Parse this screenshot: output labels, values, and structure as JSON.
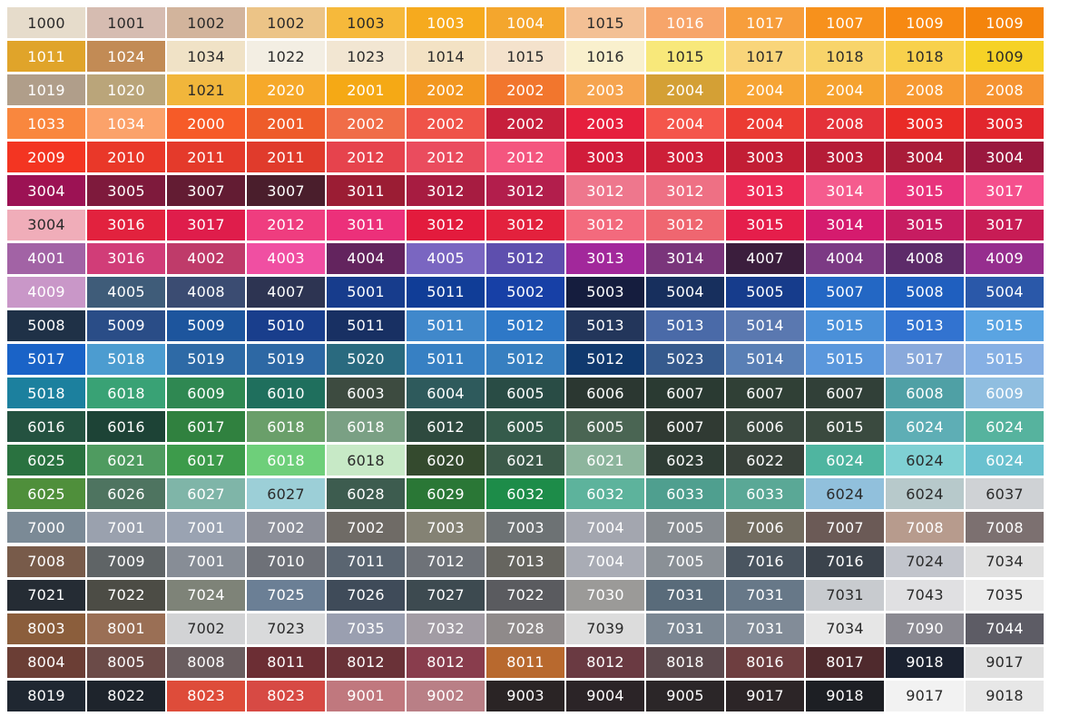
{
  "palette": {
    "rows": [
      [
        [
          "1000",
          "#e6dccb"
        ],
        [
          "1001",
          "#d6bcb1"
        ],
        [
          "1002",
          "#d2b49c"
        ],
        [
          "1002",
          "#ecc487"
        ],
        [
          "1003",
          "#f6b93b"
        ],
        [
          "1003",
          "#f6aa1e"
        ],
        [
          "1004",
          "#f4a62d"
        ],
        [
          "1015",
          "#f3c095"
        ],
        [
          "1016",
          "#f7a56a"
        ],
        [
          "1017",
          "#f79e3c"
        ],
        [
          "1007",
          "#f7911c"
        ],
        [
          "1009",
          "#f78912"
        ],
        [
          "1009",
          "#f4840c"
        ]
      ],
      [
        [
          "1011",
          "#e0a42a"
        ],
        [
          "1024",
          "#c28b55"
        ],
        [
          "1034",
          "#f0e2c6"
        ],
        [
          "1022",
          "#f3eee3"
        ],
        [
          "1023",
          "#f2e6d2"
        ],
        [
          "1014",
          "#f3e2c4"
        ],
        [
          "1015",
          "#f4e2cc"
        ],
        [
          "1016",
          "#f9f0cd"
        ],
        [
          "1015",
          "#f8e87a"
        ],
        [
          "1017",
          "#f9d57a"
        ],
        [
          "1018",
          "#f8d46a"
        ],
        [
          "1018",
          "#f8d14c"
        ],
        [
          "1009",
          "#f6d226"
        ]
      ],
      [
        [
          "1019",
          "#b09e8a"
        ],
        [
          "1020",
          "#baa57a"
        ],
        [
          "1021",
          "#f1b63b"
        ],
        [
          "2020",
          "#f6a92a"
        ],
        [
          "2001",
          "#f5a915"
        ],
        [
          "2002",
          "#f39821"
        ],
        [
          "2002",
          "#f2762d"
        ],
        [
          "2003",
          "#f6a550"
        ],
        [
          "2004",
          "#d4a035"
        ],
        [
          "2004",
          "#f7a535"
        ],
        [
          "2004",
          "#f6a330"
        ],
        [
          "2008",
          "#f79a33"
        ],
        [
          "2008",
          "#f69432"
        ]
      ],
      [
        [
          "1033",
          "#f9873e"
        ],
        [
          "1034",
          "#fba26a"
        ],
        [
          "2000",
          "#f65b28"
        ],
        [
          "2001",
          "#ee5c2a"
        ],
        [
          "2002",
          "#f06d48"
        ],
        [
          "2002",
          "#ef5349"
        ],
        [
          "2002",
          "#c71f3c"
        ],
        [
          "2003",
          "#e61f3d"
        ],
        [
          "2004",
          "#f4564b"
        ],
        [
          "2004",
          "#eb3b33"
        ],
        [
          "2008",
          "#e43139"
        ],
        [
          "3003",
          "#e92b27"
        ],
        [
          "3003",
          "#e2262d"
        ]
      ],
      [
        [
          "2009",
          "#f33522"
        ],
        [
          "2010",
          "#e93829"
        ],
        [
          "2011",
          "#e43a2b"
        ],
        [
          "2011",
          "#e03b2c"
        ],
        [
          "2012",
          "#e6434d"
        ],
        [
          "2012",
          "#ea4c5e"
        ],
        [
          "2012",
          "#f4567f"
        ],
        [
          "3003",
          "#d11c3a"
        ],
        [
          "3003",
          "#cd1f38"
        ],
        [
          "3003",
          "#c21e35"
        ],
        [
          "3003",
          "#b51c37"
        ],
        [
          "3004",
          "#a91c39"
        ],
        [
          "3004",
          "#9a183e"
        ]
      ],
      [
        [
          "3004",
          "#9c1254"
        ],
        [
          "3005",
          "#7e1a3c"
        ],
        [
          "3007",
          "#631c33"
        ],
        [
          "3007",
          "#4a1e2c"
        ],
        [
          "3011",
          "#9b1d34"
        ],
        [
          "3012",
          "#a71c41"
        ],
        [
          "3012",
          "#b21e4c"
        ],
        [
          "3012",
          "#ee778d"
        ],
        [
          "3012",
          "#ee7084"
        ],
        [
          "3013",
          "#ec2a56"
        ],
        [
          "3014",
          "#f55c8e"
        ],
        [
          "3015",
          "#e8337c"
        ],
        [
          "3017",
          "#f5508d"
        ]
      ],
      [
        [
          "3004",
          "#f0adb9"
        ],
        [
          "3016",
          "#e2223e"
        ],
        [
          "3017",
          "#df1d4b"
        ],
        [
          "2012",
          "#ef3d7f"
        ],
        [
          "3011",
          "#ec307a"
        ],
        [
          "3012",
          "#e31b3d"
        ],
        [
          "3012",
          "#e3213d"
        ],
        [
          "3012",
          "#f36a7d"
        ],
        [
          "3012",
          "#ef6670"
        ],
        [
          "3015",
          "#e51e4b"
        ],
        [
          "3014",
          "#d51b6e"
        ],
        [
          "3015",
          "#c71c61"
        ],
        [
          "3017",
          "#c81c55"
        ]
      ],
      [
        [
          "4001",
          "#a263a5"
        ],
        [
          "3016",
          "#d13d78"
        ],
        [
          "4002",
          "#bf3b6a"
        ],
        [
          "4003",
          "#f04fa2"
        ],
        [
          "4004",
          "#63245e"
        ],
        [
          "4005",
          "#7a66c1"
        ],
        [
          "5012",
          "#5e4fae"
        ],
        [
          "3013",
          "#a2289b"
        ],
        [
          "3014",
          "#7a357b"
        ],
        [
          "4007",
          "#3b1e3d"
        ],
        [
          "4004",
          "#7c3a84"
        ],
        [
          "4008",
          "#5d2b69"
        ],
        [
          "4009",
          "#962e8e"
        ]
      ],
      [
        [
          "4009",
          "#c997c8"
        ],
        [
          "4005",
          "#3f5c79"
        ],
        [
          "4008",
          "#3b4c72"
        ],
        [
          "4007",
          "#2d3452"
        ],
        [
          "5001",
          "#173c8c"
        ],
        [
          "5011",
          "#103d97"
        ],
        [
          "5002",
          "#1740a6"
        ],
        [
          "5003",
          "#151d3e"
        ],
        [
          "5004",
          "#172f5d"
        ],
        [
          "5005",
          "#163c8c"
        ],
        [
          "5007",
          "#2367c4"
        ],
        [
          "5008",
          "#1f5fbf"
        ],
        [
          "5004",
          "#2a58a9"
        ]
      ],
      [
        [
          "5008",
          "#1f3147"
        ],
        [
          "5009",
          "#2a4d87"
        ],
        [
          "5009",
          "#1d559d"
        ],
        [
          "5010",
          "#193e8c"
        ],
        [
          "5011",
          "#183063"
        ],
        [
          "5011",
          "#4088cb"
        ],
        [
          "5012",
          "#2e78c7"
        ],
        [
          "5013",
          "#23365b"
        ],
        [
          "5013",
          "#4a6aa8"
        ],
        [
          "5014",
          "#5a78b0"
        ],
        [
          "5015",
          "#4a90d9"
        ],
        [
          "5013",
          "#3273d0"
        ],
        [
          "5015",
          "#5aa4e2"
        ]
      ],
      [
        [
          "5017",
          "#1a63c7"
        ],
        [
          "5018",
          "#4c9cd0"
        ],
        [
          "5019",
          "#2e6aa6"
        ],
        [
          "5019",
          "#2d68a4"
        ],
        [
          "5020",
          "#2a6a7f"
        ],
        [
          "5011",
          "#3780c3"
        ],
        [
          "5012",
          "#377fc0"
        ],
        [
          "5012",
          "#10396e"
        ],
        [
          "5023",
          "#365a8d"
        ],
        [
          "5014",
          "#597fb5"
        ],
        [
          "5015",
          "#5a97dc"
        ],
        [
          "5017",
          "#89a9db"
        ],
        [
          "5015",
          "#86b0e4"
        ]
      ],
      [
        [
          "5018",
          "#1c809e"
        ],
        [
          "6018",
          "#39a275"
        ],
        [
          "6009",
          "#2f8852"
        ],
        [
          "6010",
          "#1f6f5d"
        ],
        [
          "6003",
          "#3d4b40"
        ],
        [
          "6004",
          "#2e5a5c"
        ],
        [
          "6005",
          "#294c45"
        ],
        [
          "6006",
          "#2b3731"
        ],
        [
          "6007",
          "#2a3a32"
        ],
        [
          "6007",
          "#304036"
        ],
        [
          "6007",
          "#314038"
        ],
        [
          "6008",
          "#4fa0a5"
        ],
        [
          "6009",
          "#90bee0"
        ]
      ],
      [
        [
          "6016",
          "#245240"
        ],
        [
          "6016",
          "#1d4336"
        ],
        [
          "6017",
          "#30813f"
        ],
        [
          "6018",
          "#6a9f6a"
        ],
        [
          "6018",
          "#7aa084"
        ],
        [
          "6012",
          "#2e4a3f"
        ],
        [
          "6005",
          "#355b4b"
        ],
        [
          "6005",
          "#4a6553"
        ],
        [
          "6007",
          "#303a33"
        ],
        [
          "6006",
          "#3b4940"
        ],
        [
          "6015",
          "#3a4a3f"
        ],
        [
          "6024",
          "#5eaeb5"
        ],
        [
          "6024",
          "#56b39e"
        ]
      ],
      [
        [
          "6025",
          "#2a7240"
        ],
        [
          "6021",
          "#4f9b60"
        ],
        [
          "6017",
          "#3d9b4b"
        ],
        [
          "6018",
          "#6ecf7a"
        ],
        [
          "6018",
          "#c7e9c6"
        ],
        [
          "6020",
          "#344a2e"
        ],
        [
          "6021",
          "#3c5a4a"
        ],
        [
          "6021",
          "#8db59d"
        ],
        [
          "6023",
          "#2f3d35"
        ],
        [
          "6022",
          "#38413a"
        ],
        [
          "6024",
          "#4fb5a0"
        ],
        [
          "6024",
          "#7fd0d3"
        ],
        [
          "6024",
          "#6ac1cf"
        ]
      ],
      [
        [
          "6025",
          "#4f8f3b"
        ],
        [
          "6026",
          "#4e7460"
        ],
        [
          "6027",
          "#7fb5a8"
        ],
        [
          "6027",
          "#9ccfd7"
        ],
        [
          "6028",
          "#3d5c4f"
        ],
        [
          "6029",
          "#2a7736"
        ],
        [
          "6032",
          "#1d8c49"
        ],
        [
          "6032",
          "#5db39c"
        ],
        [
          "6033",
          "#4f9f8f"
        ],
        [
          "6033",
          "#5aa896"
        ],
        [
          "6024",
          "#91c0dc"
        ],
        [
          "6024",
          "#b7c9cb"
        ],
        [
          "6037",
          "#cfd2d5"
        ]
      ],
      [
        [
          "7000",
          "#7b8a96"
        ],
        [
          "7001",
          "#9aa1ae"
        ],
        [
          "7001",
          "#9aa3b2"
        ],
        [
          "7002",
          "#8c8f99"
        ],
        [
          "7002",
          "#6f6b66"
        ],
        [
          "7003",
          "#848274"
        ],
        [
          "7003",
          "#6d7274"
        ],
        [
          "7004",
          "#a3a6af"
        ],
        [
          "7005",
          "#868b90"
        ],
        [
          "7006",
          "#726c60"
        ],
        [
          "7007",
          "#6b5a56"
        ],
        [
          "7008",
          "#b79b8d"
        ],
        [
          "7008",
          "#7c7070"
        ]
      ],
      [
        [
          "7008",
          "#785b4a"
        ],
        [
          "7009",
          "#5f6466"
        ],
        [
          "7001",
          "#878d96"
        ],
        [
          "7010",
          "#6e7178"
        ],
        [
          "7011",
          "#5a6571"
        ],
        [
          "7012",
          "#6e7278"
        ],
        [
          "7013",
          "#66655f"
        ],
        [
          "7004",
          "#a9acb5"
        ],
        [
          "7005",
          "#8a9096"
        ],
        [
          "7016",
          "#4a5560"
        ],
        [
          "7016",
          "#3b434c"
        ],
        [
          "7024",
          "#c2c5cc"
        ],
        [
          "7034",
          "#e0e0e0"
        ]
      ],
      [
        [
          "7021",
          "#252c34"
        ],
        [
          "7022",
          "#4c4c45"
        ],
        [
          "7024",
          "#7e8378"
        ],
        [
          "7025",
          "#6b7f95"
        ],
        [
          "7026",
          "#3f4b59"
        ],
        [
          "7027",
          "#3d4a50"
        ],
        [
          "7022",
          "#5a5b5f"
        ],
        [
          "7030",
          "#9b9a98"
        ],
        [
          "7031",
          "#596b7a"
        ],
        [
          "7031",
          "#677888"
        ],
        [
          "7031",
          "#c8cbcf"
        ],
        [
          "7043",
          "#e0e0e2"
        ],
        [
          "7035",
          "#ebebeb"
        ]
      ],
      [
        [
          "8003",
          "#8b5e3c"
        ],
        [
          "8001",
          "#9a6f55"
        ],
        [
          "7002",
          "#d2d3d5"
        ],
        [
          "7023",
          "#d9dadb"
        ],
        [
          "7035",
          "#9a9fb0"
        ],
        [
          "7032",
          "#a29ca4"
        ],
        [
          "7028",
          "#8f8a8a"
        ],
        [
          "7039",
          "#dcdcdc"
        ],
        [
          "7031",
          "#7c8894"
        ],
        [
          "7031",
          "#828c98"
        ],
        [
          "7034",
          "#e6e6e6"
        ],
        [
          "7090",
          "#8b8a92"
        ],
        [
          "7044",
          "#5d5c65"
        ]
      ],
      [
        [
          "8004",
          "#6b3e35"
        ],
        [
          "8005",
          "#6b4b48"
        ],
        [
          "8008",
          "#6a5e60"
        ],
        [
          "8011",
          "#6c2e34"
        ],
        [
          "8012",
          "#6a3238"
        ],
        [
          "8012",
          "#893d4d"
        ],
        [
          "8011",
          "#b8692e"
        ],
        [
          "8012",
          "#6a3a42"
        ],
        [
          "8018",
          "#5c4a4e"
        ],
        [
          "8016",
          "#6e3e40"
        ],
        [
          "8017",
          "#4f2a2d"
        ],
        [
          "9018",
          "#1b2230"
        ],
        [
          "9017",
          "#e0e0e0"
        ]
      ],
      [
        [
          "8019",
          "#1f2731"
        ],
        [
          "8022",
          "#1e242c"
        ],
        [
          "8023",
          "#de4c3a"
        ],
        [
          "8023",
          "#d74a44"
        ],
        [
          "9001",
          "#c0787e"
        ],
        [
          "9002",
          "#b97f86"
        ],
        [
          "9003",
          "#2a2425"
        ],
        [
          "9004",
          "#2b2427"
        ],
        [
          "9005",
          "#2b2628"
        ],
        [
          "9017",
          "#2c2527"
        ],
        [
          "9018",
          "#1d1f24"
        ],
        [
          "9017",
          "#f2f2f2"
        ],
        [
          "9018",
          "#e7e7e7"
        ]
      ]
    ]
  }
}
